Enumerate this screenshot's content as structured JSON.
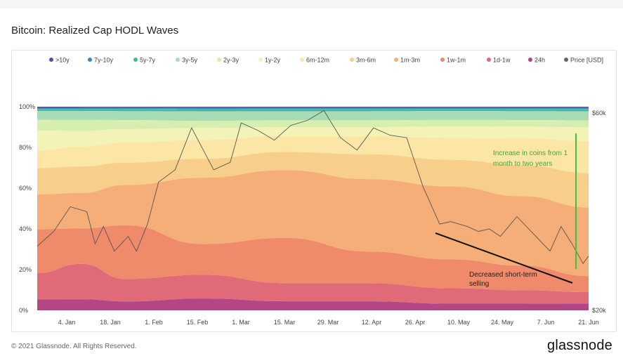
{
  "page": {
    "title": "Bitcoin: Realized Cap HODL Waves",
    "footer": "© 2021 Glassnode. All Rights Reserved.",
    "brand": "glassnode",
    "watermark": "glassnode"
  },
  "chart_data": {
    "type": "area",
    "title": "Bitcoin: Realized Cap HODL Waves",
    "stacked_to": 100,
    "ylim": [
      0,
      100
    ],
    "y_ticks": [
      "0%",
      "20%",
      "40%",
      "60%",
      "80%",
      "100%"
    ],
    "y2_ticks": [
      "$20k",
      "$60k"
    ],
    "x_ticks": [
      "4. Jan",
      "18. Jan",
      "1. Feb",
      "15. Feb",
      "1. Mar",
      "15. Mar",
      "29. Mar",
      "12. Apr",
      "26. Apr",
      "10. May",
      "24. May",
      "7. Jun",
      "21. Jun"
    ],
    "legend_position": "top",
    "series_times": [
      0,
      0.08,
      0.16,
      0.3,
      0.45,
      0.6,
      0.75,
      0.88,
      1.0
    ],
    "series": [
      {
        "name": ">10y",
        "color": "#5a4f9e",
        "values": [
          0.5,
          0.5,
          0.5,
          0.5,
          0.5,
          0.5,
          0.5,
          0.5,
          0.5
        ]
      },
      {
        "name": "7y-10y",
        "color": "#3a86c8",
        "values": [
          0.5,
          0.5,
          0.5,
          0.5,
          0.5,
          0.5,
          0.5,
          0.5,
          0.5
        ]
      },
      {
        "name": "5y-7y",
        "color": "#44b8a0",
        "values": [
          1.0,
          1.0,
          1.0,
          1.0,
          1.0,
          1.0,
          1.0,
          1.0,
          1.0
        ]
      },
      {
        "name": "3y-5y",
        "color": "#a8dcb4",
        "values": [
          4.0,
          4.0,
          4.0,
          4.0,
          4.0,
          4.0,
          4.0,
          4.0,
          4.0
        ]
      },
      {
        "name": "2y-3y",
        "color": "#d6eeb0",
        "values": [
          5.0,
          5.0,
          4.0,
          3.0,
          3.0,
          3.0,
          3.0,
          3.0,
          3.0
        ]
      },
      {
        "name": "1y-2y",
        "color": "#f3f3b8",
        "values": [
          9.0,
          7.0,
          6.0,
          5.0,
          4.0,
          4.0,
          5.0,
          5.0,
          6.0
        ]
      },
      {
        "name": "6m-12m",
        "color": "#fbe6a6",
        "values": [
          8.0,
          9.0,
          9.0,
          8.0,
          7.0,
          8.0,
          10.0,
          12.0,
          14.0
        ]
      },
      {
        "name": "3m-6m",
        "color": "#f8cf8a",
        "values": [
          12.0,
          12.0,
          10.0,
          8.0,
          8.0,
          11.0,
          12.0,
          14.0,
          15.0
        ]
      },
      {
        "name": "1m-3m",
        "color": "#f6ae78",
        "values": [
          16.0,
          16.0,
          18.0,
          28.0,
          30.0,
          32.0,
          33.0,
          31.0,
          30.0
        ]
      },
      {
        "name": "1w-1m",
        "color": "#ef8a6a",
        "values": [
          20.0,
          16.0,
          24.0,
          13.0,
          20.0,
          14.0,
          13.0,
          11.0,
          7.0
        ]
      },
      {
        "name": "1d-1w",
        "color": "#e06a78",
        "values": [
          12.0,
          16.0,
          10.0,
          10.0,
          8.0,
          8.0,
          7.0,
          6.0,
          5.0
        ]
      },
      {
        "name": "24h",
        "color": "#b34785",
        "values": [
          5.0,
          5.0,
          4.0,
          5.0,
          4.0,
          4.0,
          3.0,
          3.0,
          3.0
        ]
      }
    ],
    "price_series": {
      "name": "Price [USD]",
      "color": "#666666",
      "unit": "USD",
      "axis_range_usd": [
        20000,
        60000
      ],
      "times": [
        0,
        0.03,
        0.06,
        0.09,
        0.105,
        0.12,
        0.14,
        0.165,
        0.18,
        0.2,
        0.22,
        0.25,
        0.28,
        0.32,
        0.35,
        0.37,
        0.4,
        0.43,
        0.46,
        0.49,
        0.52,
        0.55,
        0.58,
        0.61,
        0.64,
        0.67,
        0.7,
        0.73,
        0.75,
        0.78,
        0.8,
        0.82,
        0.84,
        0.87,
        0.9,
        0.93,
        0.95,
        0.97,
        0.99,
        1.0
      ],
      "values": [
        33000,
        36000,
        41000,
        40000,
        33500,
        37000,
        32000,
        35000,
        32000,
        37500,
        46000,
        48500,
        57000,
        48500,
        50000,
        58000,
        56500,
        54500,
        57500,
        58500,
        60500,
        55000,
        52500,
        57000,
        55500,
        55000,
        45000,
        37500,
        38000,
        37000,
        36000,
        36500,
        35000,
        39000,
        35500,
        32000,
        37000,
        33500,
        29500,
        31000
      ]
    },
    "annotations": [
      {
        "text": [
          "Increase in coins from 1",
          "month to two years"
        ],
        "color": "#3fa83f"
      },
      {
        "text": [
          "Decreased short-term",
          "selling"
        ],
        "color": "#222222"
      }
    ]
  }
}
